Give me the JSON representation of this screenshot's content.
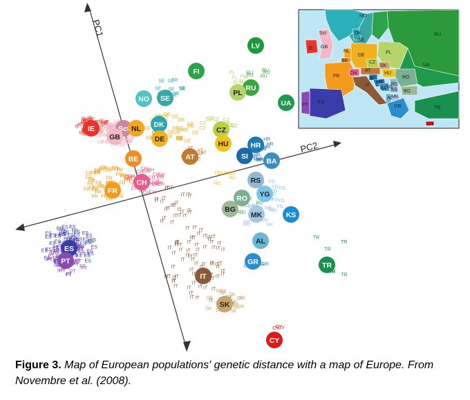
{
  "figure": {
    "axis_labels": {
      "pc1": "PC1",
      "pc2": "PC2"
    },
    "centroids": [
      {
        "code": "LV",
        "color": "#1a9a3c"
      },
      {
        "code": "FI",
        "color": "#2ca24a"
      },
      {
        "code": "RU",
        "color": "#3aa53c"
      },
      {
        "code": "PL",
        "color": "#b5d56a"
      },
      {
        "code": "UA",
        "color": "#1f9a4c"
      },
      {
        "code": "NO",
        "color": "#4fc3c6"
      },
      {
        "code": "SE",
        "color": "#3aa7a7"
      },
      {
        "code": "DK",
        "color": "#2aa7b0"
      },
      {
        "code": "IE",
        "color": "#e8342a"
      },
      {
        "code": "Sct",
        "color": "#cc8aa0"
      },
      {
        "code": "GB",
        "color": "#f2b8c6"
      },
      {
        "code": "NL",
        "color": "#f4a61c"
      },
      {
        "code": "DE",
        "color": "#f0b020"
      },
      {
        "code": "CZ",
        "color": "#b8cf4a"
      },
      {
        "code": "HU",
        "color": "#f2c21a"
      },
      {
        "code": "AT",
        "color": "#c07a34"
      },
      {
        "code": "BE",
        "color": "#f28c24"
      },
      {
        "code": "HR",
        "color": "#1f79b4"
      },
      {
        "code": "SI",
        "color": "#1a6aa8"
      },
      {
        "code": "BA",
        "color": "#3a8ec4"
      },
      {
        "code": "CH",
        "color": "#ee5a86"
      },
      {
        "code": "FR",
        "color": "#f59a1a"
      },
      {
        "code": "RS",
        "color": "#8fb8d4"
      },
      {
        "code": "YG",
        "color": "#7ac6e8"
      },
      {
        "code": "RO",
        "color": "#7bb092"
      },
      {
        "code": "BG",
        "color": "#9ab896"
      },
      {
        "code": "MK",
        "color": "#a6c6e6"
      },
      {
        "code": "KS",
        "color": "#1a8ad4"
      },
      {
        "code": "AL",
        "color": "#6ab6d8"
      },
      {
        "code": "GR",
        "color": "#2a8ecc"
      },
      {
        "code": "TR",
        "color": "#1a9050"
      },
      {
        "code": "ES",
        "color": "#3a3caa"
      },
      {
        "code": "PT",
        "color": "#8a4ab6"
      },
      {
        "code": "IT",
        "color": "#8a5a36"
      },
      {
        "code": "SK",
        "color": "#c7a46a"
      },
      {
        "code": "CY",
        "color": "#dd1a1a"
      }
    ],
    "individual_labels": [
      {
        "code": "IE",
        "color": "#e8342a"
      },
      {
        "code": "GB",
        "color": "#f2a0b6"
      },
      {
        "code": "FR",
        "color": "#f59a1a"
      },
      {
        "code": "ES",
        "color": "#3a3caa"
      },
      {
        "code": "PT",
        "color": "#8a4ab6"
      },
      {
        "code": "IT",
        "color": "#8a5a36"
      },
      {
        "code": "CH",
        "color": "#ee5a86"
      },
      {
        "code": "DE",
        "color": "#f0b020"
      },
      {
        "code": "SE",
        "color": "#3aa7a7"
      },
      {
        "code": "PL",
        "color": "#b5d56a"
      },
      {
        "code": "RU",
        "color": "#3aa53c"
      },
      {
        "code": "CZ",
        "color": "#b8cf4a"
      },
      {
        "code": "HR",
        "color": "#1f79b4"
      },
      {
        "code": "YG",
        "color": "#7ac6e8"
      },
      {
        "code": "MK",
        "color": "#a6c6e6"
      },
      {
        "code": "TR",
        "color": "#1a9050"
      },
      {
        "code": "GR",
        "color": "#2a8ecc"
      },
      {
        "code": "AT",
        "color": "#c07a34"
      },
      {
        "code": "HU",
        "color": "#f2c21a"
      },
      {
        "code": "RO",
        "color": "#7bb092"
      },
      {
        "code": "CY",
        "color": "#dd1a1a"
      },
      {
        "code": "SK",
        "color": "#c7a46a"
      }
    ],
    "inset_map": {
      "labels": [
        "NO",
        "Sct",
        "GB",
        "IE",
        "DK",
        "SE",
        "RU",
        "PL",
        "DE",
        "NL",
        "BE",
        "FR",
        "CH",
        "CZ",
        "SK",
        "AT",
        "HU",
        "UA",
        "RO",
        "SI",
        "HR",
        "BA",
        "YG",
        "RS",
        "KS",
        "BG",
        "AL",
        "MK",
        "IT",
        "GR",
        "ES",
        "PT",
        "TR",
        "CY"
      ]
    }
  },
  "caption": {
    "label": "Figure 3.",
    "text": "Map of European populations' genetic distance with a map of Europe. From Novembre et al. (2008)."
  }
}
